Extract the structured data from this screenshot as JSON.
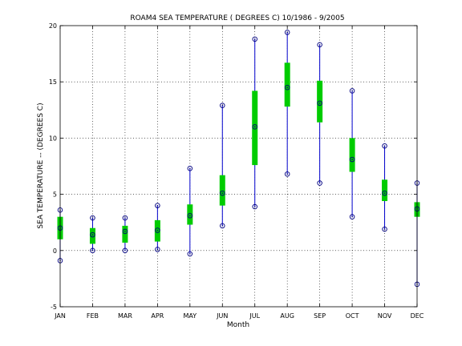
{
  "chart_data": {
    "type": "boxplot",
    "title": "ROAM4  SEA TEMPERATURE ( DEGREES C) 10/1986 - 9/2005",
    "xlabel": "Month",
    "ylabel": "SEA TEMPERATURE -- (DEGREES C)",
    "categories": [
      "JAN",
      "FEB",
      "MAR",
      "APR",
      "MAY",
      "JUN",
      "JUL",
      "AUG",
      "SEP",
      "OCT",
      "NOV",
      "DEC"
    ],
    "ylim": [
      -5,
      20
    ],
    "yticks": [
      -5,
      0,
      5,
      10,
      15,
      20
    ],
    "ytick_labels": [
      "-5",
      "0",
      "5",
      "10",
      "15",
      "20"
    ],
    "grid": true,
    "series": [
      {
        "min": [
          -0.9,
          0.0,
          0.0,
          0.1,
          -0.3,
          2.2,
          3.9,
          6.8,
          6.0,
          3.0,
          1.9,
          -3.0
        ],
        "q1": [
          1.0,
          0.6,
          0.7,
          0.8,
          2.3,
          4.0,
          7.6,
          12.8,
          11.4,
          7.0,
          4.4,
          3.0
        ],
        "median": [
          2.0,
          1.4,
          1.7,
          1.8,
          3.1,
          5.1,
          11.0,
          14.5,
          13.1,
          8.1,
          5.1,
          3.7
        ],
        "q3": [
          3.0,
          2.0,
          2.2,
          2.7,
          4.1,
          6.7,
          14.2,
          16.7,
          15.1,
          10.0,
          6.3,
          4.3
        ],
        "max": [
          3.6,
          2.9,
          2.9,
          4.0,
          7.3,
          12.9,
          18.8,
          19.4,
          18.3,
          14.2,
          9.3,
          6.0
        ]
      }
    ],
    "colors": {
      "whisker": "#0000cc",
      "box": "#00cc00",
      "marker": "#000080"
    }
  }
}
